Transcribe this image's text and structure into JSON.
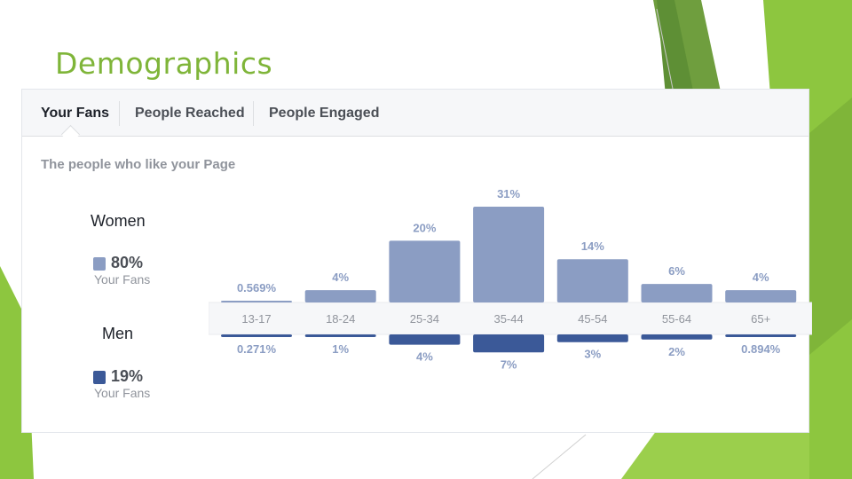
{
  "slide": {
    "title": "Demographics",
    "colors": {
      "accent": "#7fb539",
      "accent_dark": "#5a8f2a",
      "accent_light": "#a6d463"
    }
  },
  "tabs": [
    {
      "label": "Your Fans",
      "active": true
    },
    {
      "label": "People Reached",
      "active": false
    },
    {
      "label": "People Engaged",
      "active": false
    }
  ],
  "subtitle": "The people who like your Page",
  "legend": {
    "women": {
      "title": "Women",
      "percent": "80%",
      "caption": "Your Fans",
      "color": "#8b9dc3"
    },
    "men": {
      "title": "Men",
      "percent": "19%",
      "caption": "Your Fans",
      "color": "#3b5998"
    }
  },
  "chart_data": {
    "type": "bar",
    "categories": [
      "13-17",
      "18-24",
      "25-34",
      "35-44",
      "45-54",
      "55-64",
      "65+"
    ],
    "series": [
      {
        "name": "Women",
        "values": [
          0.569,
          4,
          20,
          31,
          14,
          6,
          4
        ],
        "labels": [
          "0.569%",
          "4%",
          "20%",
          "31%",
          "14%",
          "6%",
          "4%"
        ],
        "color": "#8b9dc3"
      },
      {
        "name": "Men",
        "values": [
          0.271,
          1,
          4,
          7,
          3,
          2,
          0.894
        ],
        "labels": [
          "0.271%",
          "1%",
          "4%",
          "7%",
          "3%",
          "2%",
          "0.894%"
        ],
        "color": "#3b5998"
      }
    ],
    "value_label_color": "#8b9dc3",
    "axis_label_color": "#90949c",
    "grid": false
  }
}
